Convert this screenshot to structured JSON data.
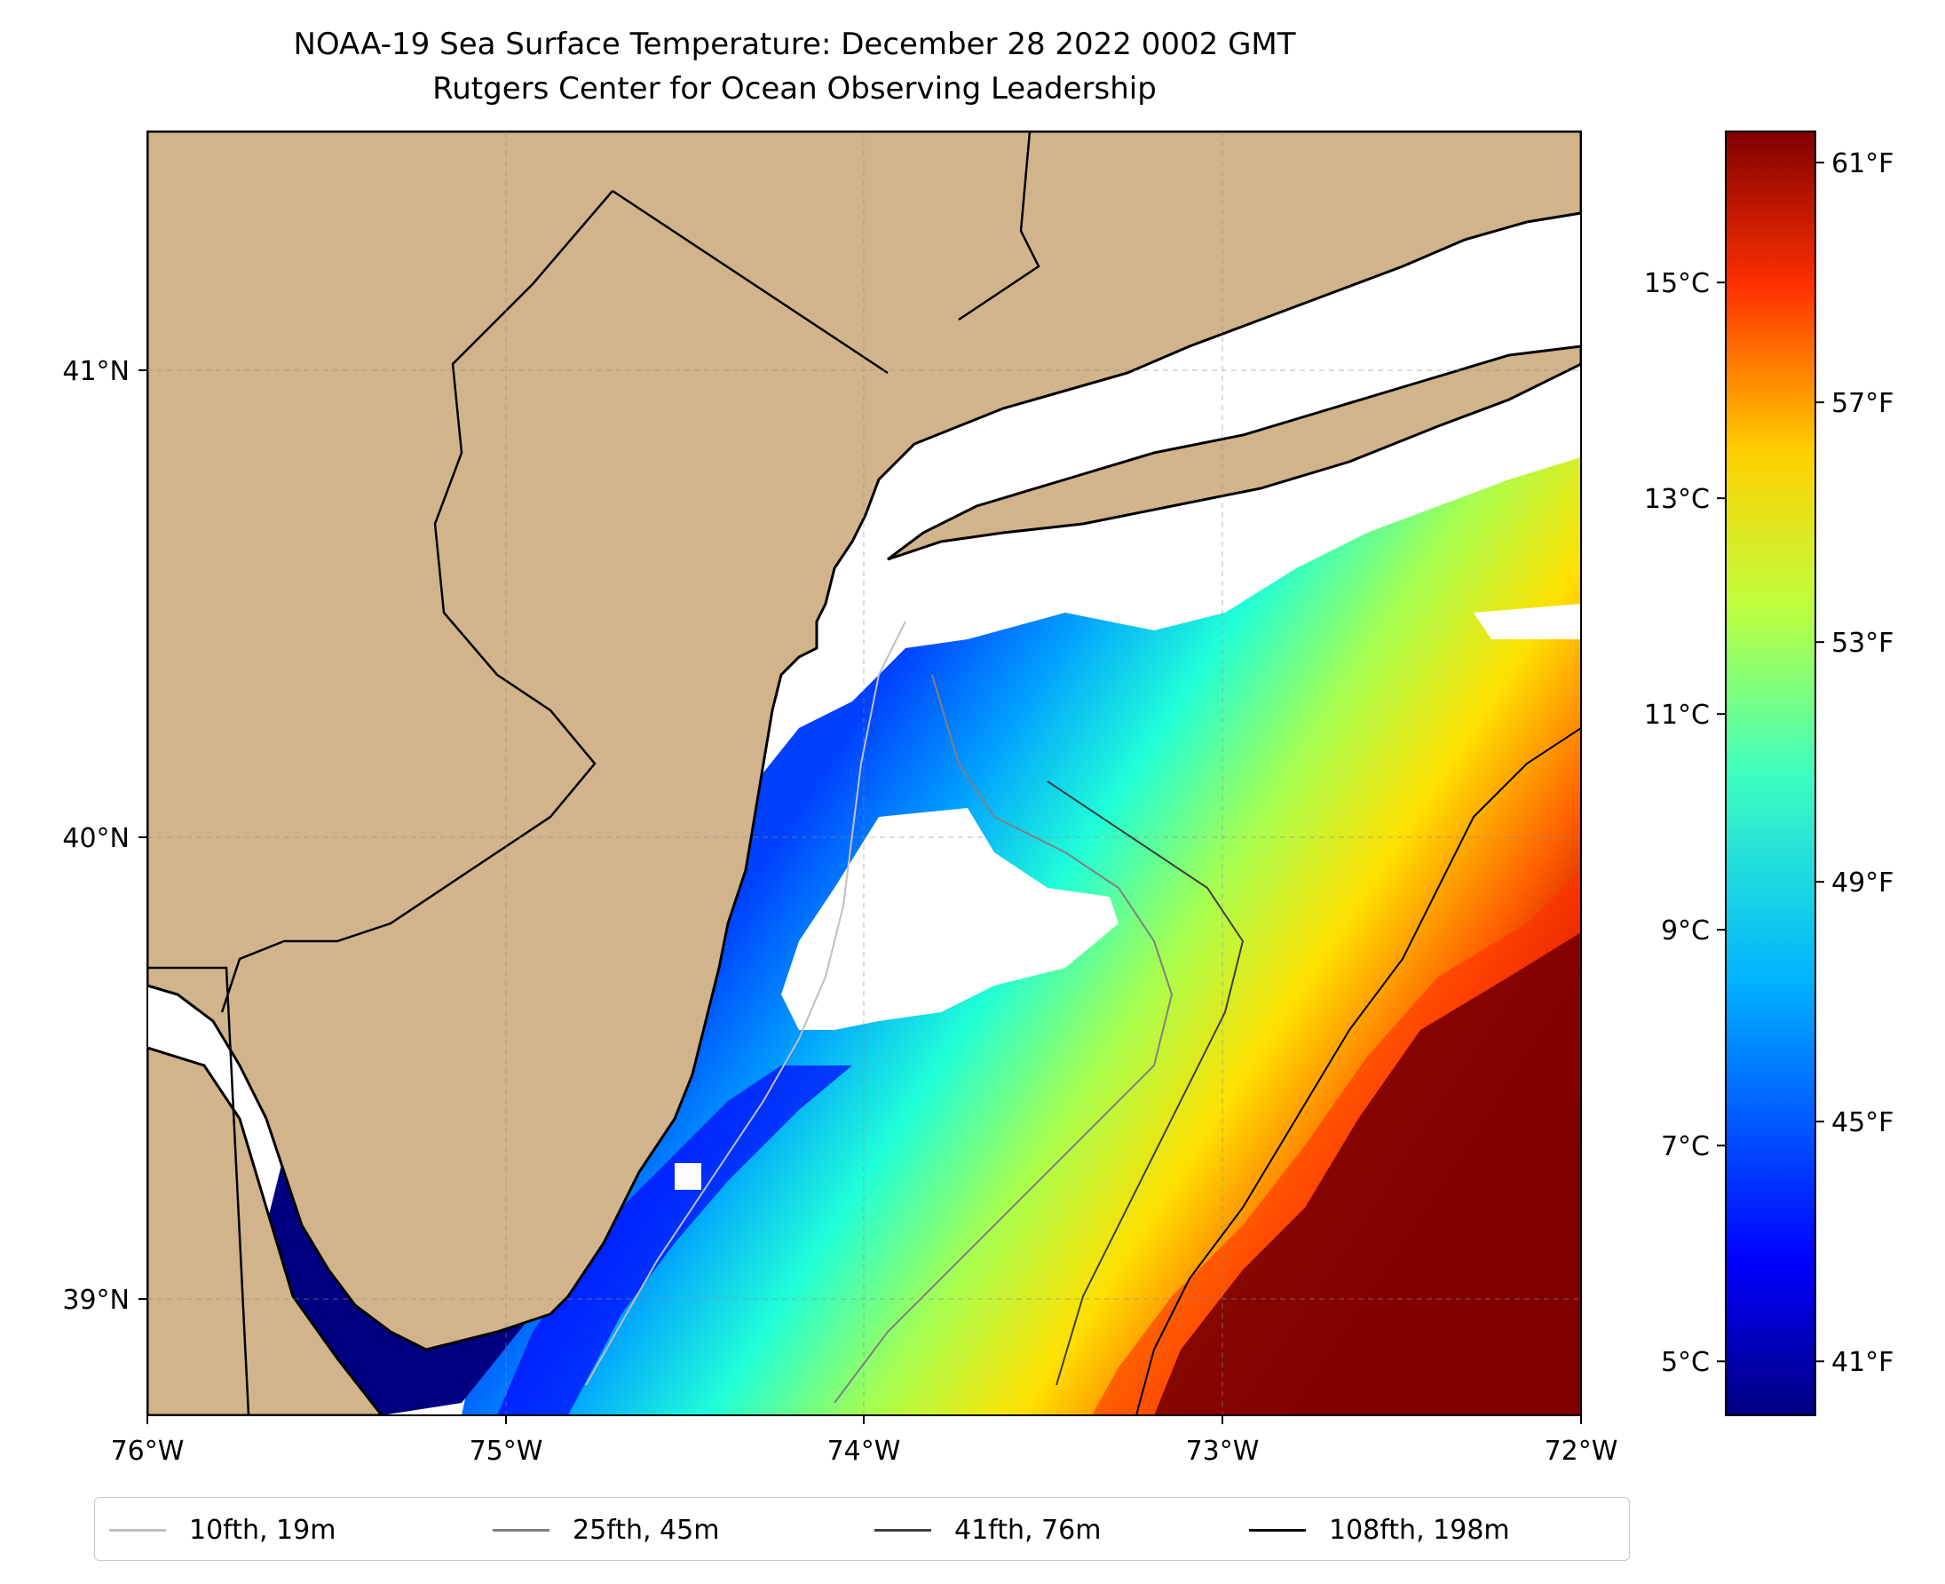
{
  "title": {
    "line1": "NOAA-19 Sea Surface Temperature: December 28 2022 0002 GMT",
    "line2": "Rutgers Center for Ocean Observing Leadership"
  },
  "map": {
    "lon_range": [
      -76,
      -72
    ],
    "lat_range": [
      38.75,
      41.5
    ],
    "land_color": "#d2b48c",
    "coast_color": "#000000",
    "gridlines": true,
    "lon_ticks": [
      {
        "value": -76,
        "label": "76°W"
      },
      {
        "value": -75,
        "label": "75°W"
      },
      {
        "value": -74,
        "label": "74°W"
      },
      {
        "value": -73,
        "label": "73°W"
      },
      {
        "value": -72,
        "label": "72°W"
      }
    ],
    "lat_ticks": [
      {
        "value": 41,
        "label": "41°N"
      },
      {
        "value": 40,
        "label": "40°N"
      },
      {
        "value": 39,
        "label": "39°N"
      }
    ]
  },
  "colorbar": {
    "colormap": "jet",
    "range_c": [
      4.5,
      16.4
    ],
    "celsius_ticks": [
      {
        "value": 5,
        "label": "5°C"
      },
      {
        "value": 7,
        "label": "7°C"
      },
      {
        "value": 9,
        "label": "9°C"
      },
      {
        "value": 11,
        "label": "11°C"
      },
      {
        "value": 13,
        "label": "13°C"
      },
      {
        "value": 15,
        "label": "15°C"
      }
    ],
    "fahrenheit_ticks": [
      {
        "value": 41,
        "label": "41°F"
      },
      {
        "value": 45,
        "label": "45°F"
      },
      {
        "value": 49,
        "label": "49°F"
      },
      {
        "value": 53,
        "label": "53°F"
      },
      {
        "value": 57,
        "label": "57°F"
      },
      {
        "value": 61,
        "label": "61°F"
      }
    ]
  },
  "legend": {
    "items": [
      {
        "label": "10fth, 19m",
        "color": "#bfbfbf"
      },
      {
        "label": "25fth, 45m",
        "color": "#808080"
      },
      {
        "label": "41fth, 76m",
        "color": "#404040"
      },
      {
        "label": "108fth, 198m",
        "color": "#000000"
      }
    ]
  }
}
